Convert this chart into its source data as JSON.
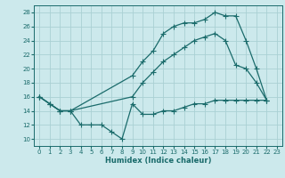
{
  "xlabel": "Humidex (Indice chaleur)",
  "bg_color": "#cce9ec",
  "grid_color": "#aad0d4",
  "line_color": "#1a6b6b",
  "xlim": [
    -0.5,
    23.5
  ],
  "ylim": [
    9,
    29
  ],
  "xticks": [
    0,
    1,
    2,
    3,
    4,
    5,
    6,
    7,
    8,
    9,
    10,
    11,
    12,
    13,
    14,
    15,
    16,
    17,
    18,
    19,
    20,
    21,
    22,
    23
  ],
  "yticks": [
    10,
    12,
    14,
    16,
    18,
    20,
    22,
    24,
    26,
    28
  ],
  "line1_x": [
    0,
    1,
    2,
    3,
    4,
    5,
    6,
    7,
    8,
    9,
    10,
    11,
    12,
    13,
    14,
    15,
    16,
    17,
    18,
    19,
    20,
    21,
    22
  ],
  "line1_y": [
    16,
    15,
    14,
    14,
    12,
    12,
    12,
    11,
    10,
    15,
    13.5,
    13.5,
    14,
    14,
    14.5,
    15,
    15,
    15.5,
    15.5,
    15.5,
    15.5,
    15.5,
    15.5
  ],
  "line2_x": [
    0,
    1,
    2,
    3,
    9,
    10,
    11,
    12,
    13,
    14,
    15,
    16,
    17,
    18,
    19,
    20,
    21,
    22
  ],
  "line2_y": [
    16,
    15,
    14,
    14,
    16,
    18,
    19.5,
    21,
    22,
    23,
    24,
    24.5,
    25,
    24,
    20.5,
    20,
    18,
    15.5
  ],
  "line3_x": [
    0,
    1,
    2,
    3,
    9,
    10,
    11,
    12,
    13,
    14,
    15,
    16,
    17,
    18,
    19,
    20,
    21,
    22
  ],
  "line3_y": [
    16,
    15,
    14,
    14,
    19,
    21,
    22.5,
    25,
    26,
    26.5,
    26.5,
    27,
    28,
    27.5,
    27.5,
    24,
    20,
    15.5
  ]
}
